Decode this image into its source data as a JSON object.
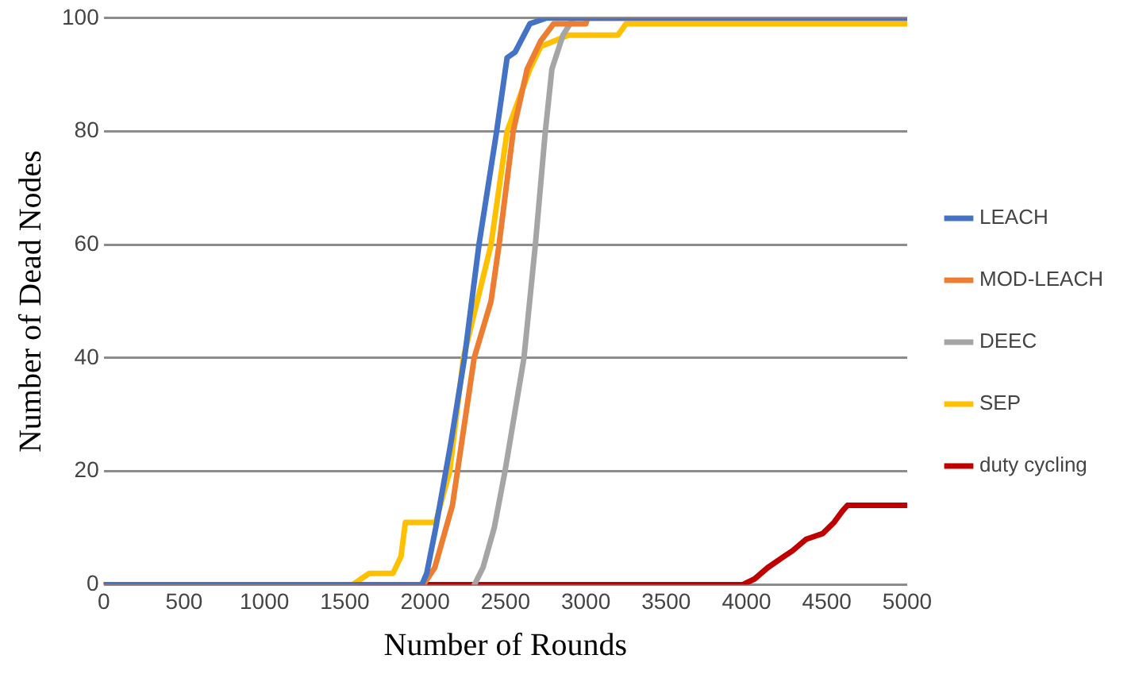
{
  "chart_data": {
    "type": "line",
    "xlabel": "Number of Rounds",
    "ylabel": "Number of Dead Nodes",
    "xlim": [
      0,
      5000
    ],
    "xticks": [
      0,
      500,
      1000,
      1500,
      2000,
      2500,
      3000,
      3500,
      4000,
      4500,
      5000
    ],
    "ylim": [
      0,
      100
    ],
    "yticks": [
      0,
      20,
      40,
      60,
      80,
      100
    ],
    "grid": "y",
    "legend": "right",
    "marker": "none",
    "line_style": "solid",
    "series": [
      {
        "name": "LEACH",
        "color": "#4472c4",
        "x": [
          0,
          1980,
          2010,
          2066,
          2160,
          2245,
          2335,
          2445,
          2510,
          2560,
          2652,
          2755,
          5000
        ],
        "values": [
          0,
          0,
          2,
          10,
          25,
          40,
          60,
          80,
          93,
          94,
          99,
          100,
          100
        ]
      },
      {
        "name": "MOD-LEACH",
        "color": "#ed7d31",
        "x": [
          0,
          1990,
          2060,
          2170,
          2305,
          2410,
          2460,
          2548,
          2635,
          2720,
          2800,
          3000,
          3010,
          5000
        ],
        "values": [
          0,
          0,
          3,
          14,
          40,
          50,
          60,
          80,
          91,
          96,
          99,
          99,
          100,
          100
        ]
      },
      {
        "name": "DEEC",
        "color": "#a5a5a5",
        "x": [
          2307,
          2360,
          2430,
          2497,
          2615,
          2686,
          2748,
          2789,
          2858,
          2925,
          5000
        ],
        "values": [
          0,
          3,
          10,
          20,
          40,
          60,
          80,
          91,
          97,
          100,
          100
        ]
      },
      {
        "name": "SEP",
        "color": "#ffc000",
        "x": [
          0,
          1550,
          1600,
          1653,
          1800,
          1850,
          1877,
          2066,
          2153,
          2238,
          2410,
          2510,
          2652,
          2720,
          2893,
          3200,
          3250,
          5000
        ],
        "values": [
          0,
          0,
          1,
          2,
          2,
          5,
          11,
          11,
          20,
          40,
          60,
          80,
          91,
          95,
          97,
          97,
          99,
          99
        ]
      },
      {
        "name": "duty cycling",
        "color": "#c00000",
        "x": [
          0,
          3977,
          4050,
          4132,
          4235,
          4287,
          4370,
          4473,
          4545,
          4597,
          4628,
          5000
        ],
        "values": [
          0,
          0,
          1,
          3,
          5,
          6,
          8,
          9,
          11,
          13,
          14,
          14
        ]
      }
    ]
  }
}
